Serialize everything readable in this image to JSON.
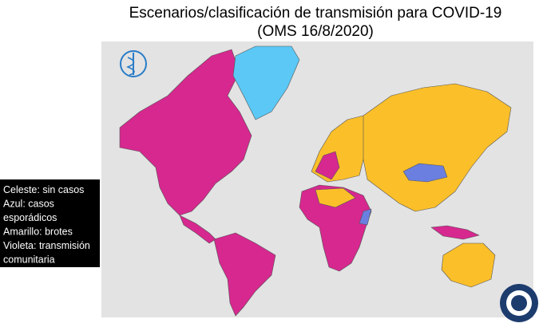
{
  "header": {
    "title": "Escenarios/clasificación de transmisión para COVID-19",
    "subtitle": "(OMS 16/8/2020)"
  },
  "legend": {
    "lines": [
      "Celeste: sin casos",
      "Azul: casos",
      "esporádicos",
      "Amarillo: brotes",
      "Violeta:  transmisión",
      "comunitaria"
    ]
  }
}
